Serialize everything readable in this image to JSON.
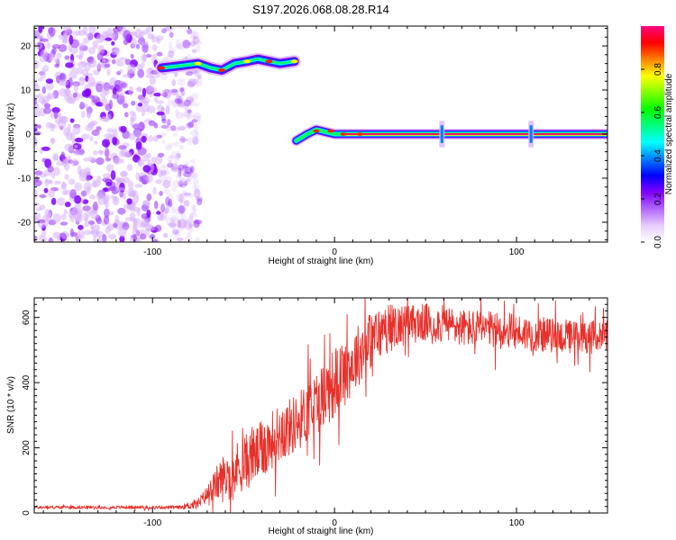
{
  "title": "S197.2026.068.08.28.R14",
  "chart_data": [
    {
      "type": "heatmap",
      "title": "S197.2026.068.08.28.R14",
      "xlabel": "Height of straight line (km)",
      "ylabel": "Frequency (Hz)",
      "xlim": [
        -165,
        150
      ],
      "ylim": [
        -24.5,
        24.5
      ],
      "xticks": [
        -100,
        0,
        100
      ],
      "yticks": [
        -20,
        -10,
        0,
        10,
        20
      ],
      "colorbar": {
        "label": "Normalized spectral amplitude",
        "range": [
          0,
          1
        ],
        "ticks": [
          "0.0",
          "0.2",
          "0.4",
          "0.6",
          "0.8"
        ],
        "tick_values": [
          0,
          0.2,
          0.4,
          0.6,
          0.8
        ],
        "colors": [
          "#ffffff",
          "#e6ccff",
          "#b266ff",
          "#8000ff",
          "#0000ff",
          "#0080ff",
          "#00ffff",
          "#00ff80",
          "#00ff00",
          "#80ff00",
          "#ffff00",
          "#ff8000",
          "#ff0000",
          "#ff0080"
        ]
      },
      "features": {
        "noise_region_x": [
          -165,
          -80
        ],
        "upper_track": {
          "x": [
            -95,
            -85,
            -75,
            -68,
            -62,
            -55,
            -48,
            -42,
            -36,
            -30,
            -22
          ],
          "freq": [
            15,
            15.5,
            16,
            15,
            14.5,
            16,
            16.5,
            17,
            16.5,
            16,
            16.5
          ]
        },
        "lower_track": {
          "x": [
            -21,
            -15,
            -10,
            -5,
            0,
            10,
            20,
            30,
            60,
            100,
            150
          ],
          "freq": [
            -1.5,
            0,
            1,
            0.5,
            0,
            0,
            0,
            0,
            0,
            0,
            0
          ]
        },
        "spike_x": [
          59,
          108
        ]
      }
    },
    {
      "type": "line",
      "xlabel": "Height of straight line (km)",
      "ylabel": "SNR (10 * v/v)",
      "xlim": [
        -165,
        150
      ],
      "ylim": [
        0,
        660
      ],
      "xticks": [
        -100,
        0,
        100
      ],
      "yticks": [
        0,
        200,
        400,
        600
      ],
      "color": "#e8302a",
      "trend": {
        "x": [
          -165,
          -120,
          -85,
          -75,
          -70,
          -65,
          -60,
          -55,
          -50,
          -45,
          -40,
          -35,
          -30,
          -25,
          -20,
          -15,
          -10,
          -5,
          0,
          5,
          10,
          15,
          20,
          25,
          30,
          40,
          50,
          60,
          70,
          80,
          90,
          100,
          110,
          120,
          130,
          140,
          150
        ],
        "y": [
          18,
          18,
          18,
          30,
          60,
          95,
          120,
          140,
          160,
          180,
          200,
          230,
          255,
          270,
          290,
          320,
          350,
          380,
          410,
          440,
          470,
          510,
          540,
          560,
          575,
          585,
          590,
          585,
          575,
          570,
          565,
          560,
          555,
          550,
          545,
          545,
          545
        ]
      },
      "noise_amplitude": {
        "x": [
          -165,
          -85,
          -70,
          -60,
          -40,
          -20,
          0,
          20,
          40,
          100,
          150
        ],
        "amp": [
          5,
          5,
          25,
          80,
          90,
          90,
          110,
          90,
          60,
          55,
          50
        ]
      }
    }
  ]
}
